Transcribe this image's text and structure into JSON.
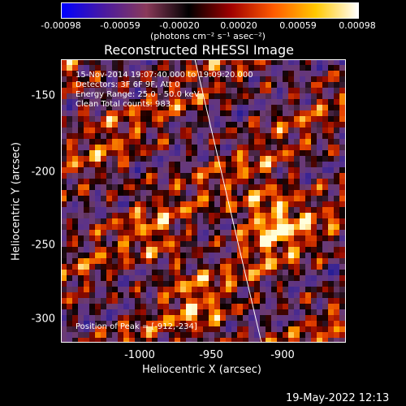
{
  "colorbar": {
    "ticks": [
      "-0.00098",
      "-0.00059",
      "-0.00020",
      "0.00020",
      "0.00059",
      "0.00098"
    ],
    "unit_label": "(photons cm⁻² s⁻¹ asec⁻²)",
    "colors": [
      "#0000ff",
      "#4a1aa0",
      "#8a3a5a",
      "#000000",
      "#a00000",
      "#ff5a00",
      "#ffc800",
      "#ffffff"
    ]
  },
  "title": "Reconstructed RHESSI Image",
  "overlay": {
    "time_range": "15-Nov-2014 19:07:40.000 to 19:09:20.000",
    "detectors": "Detectors: 3F 6F 9F, Att 0",
    "energy": "Energy Range: 25.0 - 50.0 keV",
    "clean": "Clean    Total counts: 983.",
    "peak": "Position of Peak = [-912,-234]"
  },
  "axes": {
    "xlabel": "Heliocentric X (arcsec)",
    "ylabel": "Heliocentric Y (arcsec)",
    "xticks": [
      "-1000",
      "-950",
      "-900"
    ],
    "yticks": [
      "-150",
      "-200",
      "-250",
      "-300"
    ]
  },
  "footer": {
    "timestamp": "19-May-2022 12:13"
  },
  "image": {
    "x_range": [
      -1045,
      -945
    ],
    "y_range": [
      -320,
      -125
    ],
    "peak": [
      -912,
      -234
    ]
  }
}
